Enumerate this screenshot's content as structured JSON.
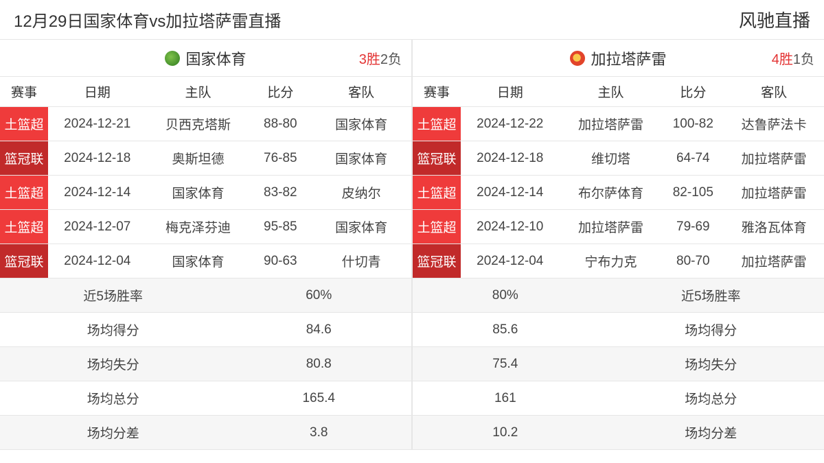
{
  "header": {
    "title": "12月29日国家体育vs加拉塔萨雷直播",
    "brand": "风驰直播"
  },
  "columns": {
    "league": "赛事",
    "date": "日期",
    "home": "主队",
    "score": "比分",
    "away": "客队"
  },
  "colors": {
    "league_red": "#ef3b3b",
    "league_darkred": "#c12a2a",
    "win_text": "#e33434",
    "border": "#e6e6e6",
    "alt_row": "#f6f6f6",
    "text": "#333333"
  },
  "left": {
    "team_name": "国家体育",
    "wins": "3胜",
    "losses": "2负",
    "logo": "green",
    "rows": [
      {
        "league": "土篮超",
        "league_style": "red",
        "date": "2024-12-21",
        "home": "贝西克塔斯",
        "score": "88-80",
        "away": "国家体育"
      },
      {
        "league": "篮冠联",
        "league_style": "darkred",
        "date": "2024-12-18",
        "home": "奥斯坦德",
        "score": "76-85",
        "away": "国家体育"
      },
      {
        "league": "土篮超",
        "league_style": "red",
        "date": "2024-12-14",
        "home": "国家体育",
        "score": "83-82",
        "away": "皮纳尔"
      },
      {
        "league": "土篮超",
        "league_style": "red",
        "date": "2024-12-07",
        "home": "梅克泽芬迪",
        "score": "95-85",
        "away": "国家体育"
      },
      {
        "league": "篮冠联",
        "league_style": "darkred",
        "date": "2024-12-04",
        "home": "国家体育",
        "score": "90-63",
        "away": "什切青"
      }
    ],
    "stats": [
      {
        "label": "近5场胜率",
        "value": "60%"
      },
      {
        "label": "场均得分",
        "value": "84.6"
      },
      {
        "label": "场均失分",
        "value": "80.8"
      },
      {
        "label": "场均总分",
        "value": "165.4"
      },
      {
        "label": "场均分差",
        "value": "3.8"
      }
    ]
  },
  "right": {
    "team_name": "加拉塔萨雷",
    "wins": "4胜",
    "losses": "1负",
    "logo": "orange",
    "rows": [
      {
        "league": "土篮超",
        "league_style": "red",
        "date": "2024-12-22",
        "home": "加拉塔萨雷",
        "score": "100-82",
        "away": "达鲁萨法卡"
      },
      {
        "league": "篮冠联",
        "league_style": "darkred",
        "date": "2024-12-18",
        "home": "维切塔",
        "score": "64-74",
        "away": "加拉塔萨雷"
      },
      {
        "league": "土篮超",
        "league_style": "red",
        "date": "2024-12-14",
        "home": "布尔萨体育",
        "score": "82-105",
        "away": "加拉塔萨雷"
      },
      {
        "league": "土篮超",
        "league_style": "red",
        "date": "2024-12-10",
        "home": "加拉塔萨雷",
        "score": "79-69",
        "away": "雅洛瓦体育"
      },
      {
        "league": "篮冠联",
        "league_style": "darkred",
        "date": "2024-12-04",
        "home": "宁布力克",
        "score": "80-70",
        "away": "加拉塔萨雷"
      }
    ],
    "stats": [
      {
        "label": "近5场胜率",
        "value": "80%"
      },
      {
        "label": "场均得分",
        "value": "85.6"
      },
      {
        "label": "场均失分",
        "value": "75.4"
      },
      {
        "label": "场均总分",
        "value": "161"
      },
      {
        "label": "场均分差",
        "value": "10.2"
      }
    ]
  }
}
